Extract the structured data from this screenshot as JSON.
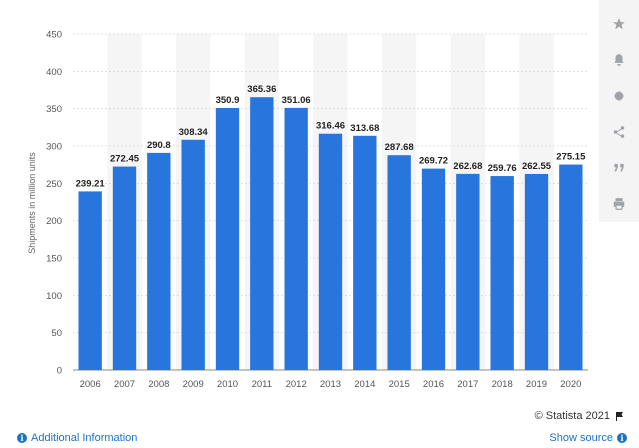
{
  "chart_data": {
    "type": "bar",
    "categories": [
      "2006",
      "2007",
      "2008",
      "2009",
      "2010",
      "2011",
      "2012",
      "2013",
      "2014",
      "2015",
      "2016",
      "2017",
      "2018",
      "2019",
      "2020"
    ],
    "values": [
      239.21,
      272.45,
      290.8,
      308.34,
      350.9,
      365.36,
      351.06,
      316.46,
      313.68,
      287.68,
      269.72,
      262.68,
      259.76,
      262.55,
      275.15
    ],
    "value_labels": [
      "239.21",
      "272.45",
      "290.8",
      "308.34",
      "350.9",
      "365.36",
      "351.06",
      "316.46",
      "313.68",
      "287.68",
      "269.72",
      "262.68",
      "259.76",
      "262.55",
      "275.15"
    ],
    "ylabel": "Shipments in million units",
    "xlabel": "",
    "ylim": [
      0,
      450
    ],
    "yticks": [
      0,
      50,
      100,
      150,
      200,
      250,
      300,
      350,
      400,
      450
    ],
    "grid": true,
    "bar_color": "#2876dd"
  },
  "toolbar": {
    "buttons": [
      "star-icon",
      "bell-icon",
      "gear-icon",
      "share-icon",
      "quote-icon",
      "print-icon"
    ]
  },
  "footer": {
    "credit": "© Statista 2021",
    "additional_info": "Additional Information",
    "show_source": "Show source"
  },
  "colors": {
    "accent": "#1a73c8",
    "bar": "#2876dd",
    "band": "#f5f5f5"
  }
}
